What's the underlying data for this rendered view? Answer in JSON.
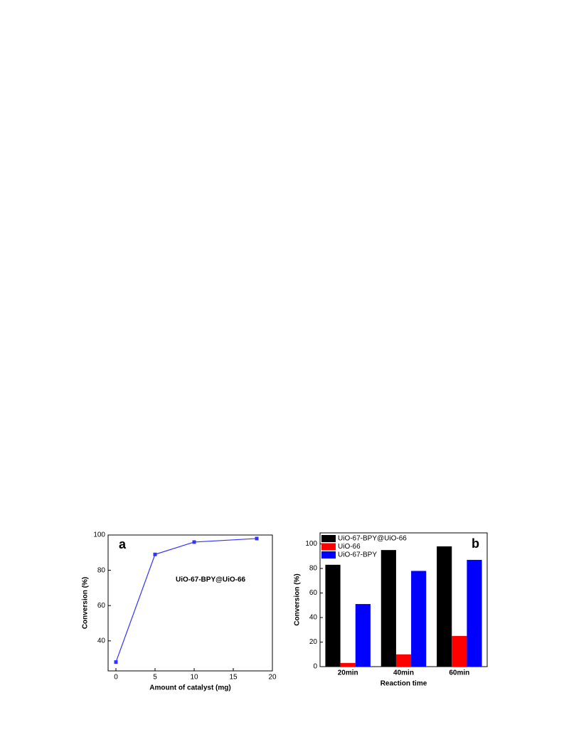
{
  "chart_data": [
    {
      "type": "line",
      "annotation": "a",
      "label": "UiO-67-BPY@UiO-66",
      "x_label": "Amount of catalyst (mg)",
      "y_label": "Conversion (%)",
      "x": [
        0,
        5,
        10,
        18
      ],
      "values": [
        28,
        89,
        96,
        98
      ],
      "color": "#3333ff",
      "xlim": [
        -1,
        20
      ],
      "xticks": [
        0,
        5,
        10,
        15,
        20
      ],
      "ylim": [
        23,
        100
      ],
      "yticks": [
        40,
        60,
        80,
        100
      ]
    },
    {
      "type": "bar",
      "annotation": "b",
      "x_label": "Reaction time",
      "y_label": "Conversion (%)",
      "categories": [
        "20min",
        "40min",
        "60min"
      ],
      "series": [
        {
          "name": "UiO-67-BPY@UiO-66",
          "color": "#000000",
          "values": [
            83,
            95,
            98
          ]
        },
        {
          "name": "UiO-66",
          "color": "#ff0000",
          "values": [
            3,
            10,
            25
          ]
        },
        {
          "name": "UiO-67-BPY",
          "color": "#0000ff",
          "values": [
            51,
            78,
            87
          ]
        }
      ],
      "ylim": [
        0,
        109
      ],
      "yticks": [
        0,
        20,
        40,
        60,
        80,
        100
      ],
      "legend": "top-left"
    }
  ]
}
